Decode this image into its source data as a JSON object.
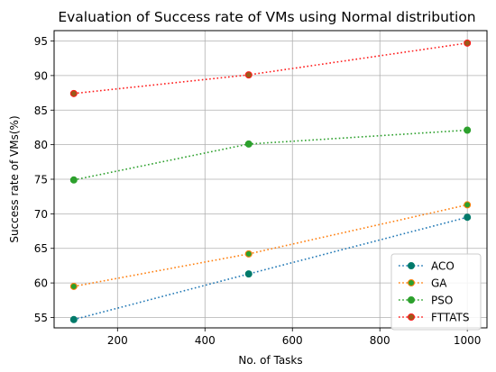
{
  "chart_data": {
    "type": "line",
    "title": "Evaluation of Success rate of VMs using Normal distribution",
    "xlabel": "No. of Tasks",
    "ylabel": "Success rate of VMs(%)",
    "xlim": [
      55,
      1045
    ],
    "ylim": [
      53.5,
      96.5
    ],
    "xticks": [
      200,
      400,
      600,
      800,
      1000
    ],
    "yticks": [
      55,
      60,
      65,
      70,
      75,
      80,
      85,
      90,
      95
    ],
    "grid": true,
    "legend_position": "lower-right",
    "x": [
      100,
      500,
      1000
    ],
    "series": [
      {
        "name": "ACO",
        "values": [
          54.7,
          61.3,
          69.5
        ],
        "line_color": "#1f77b4",
        "marker_color": "#007a6a",
        "marker_edge": "#007a6a"
      },
      {
        "name": "GA",
        "values": [
          59.5,
          64.2,
          71.3
        ],
        "line_color": "#ff7f0e",
        "marker_color": "#2ca02c",
        "marker_edge": "#ff7f0e"
      },
      {
        "name": "PSO",
        "values": [
          74.9,
          80.1,
          82.1
        ],
        "line_color": "#2ca02c",
        "marker_color": "#2ca02c",
        "marker_edge": "#2ca02c"
      },
      {
        "name": "FTTATS",
        "values": [
          87.4,
          90.1,
          94.7
        ],
        "line_color": "#ff1a1a",
        "marker_color": "#9a5a1a",
        "marker_edge": "#ff1a1a"
      }
    ]
  }
}
